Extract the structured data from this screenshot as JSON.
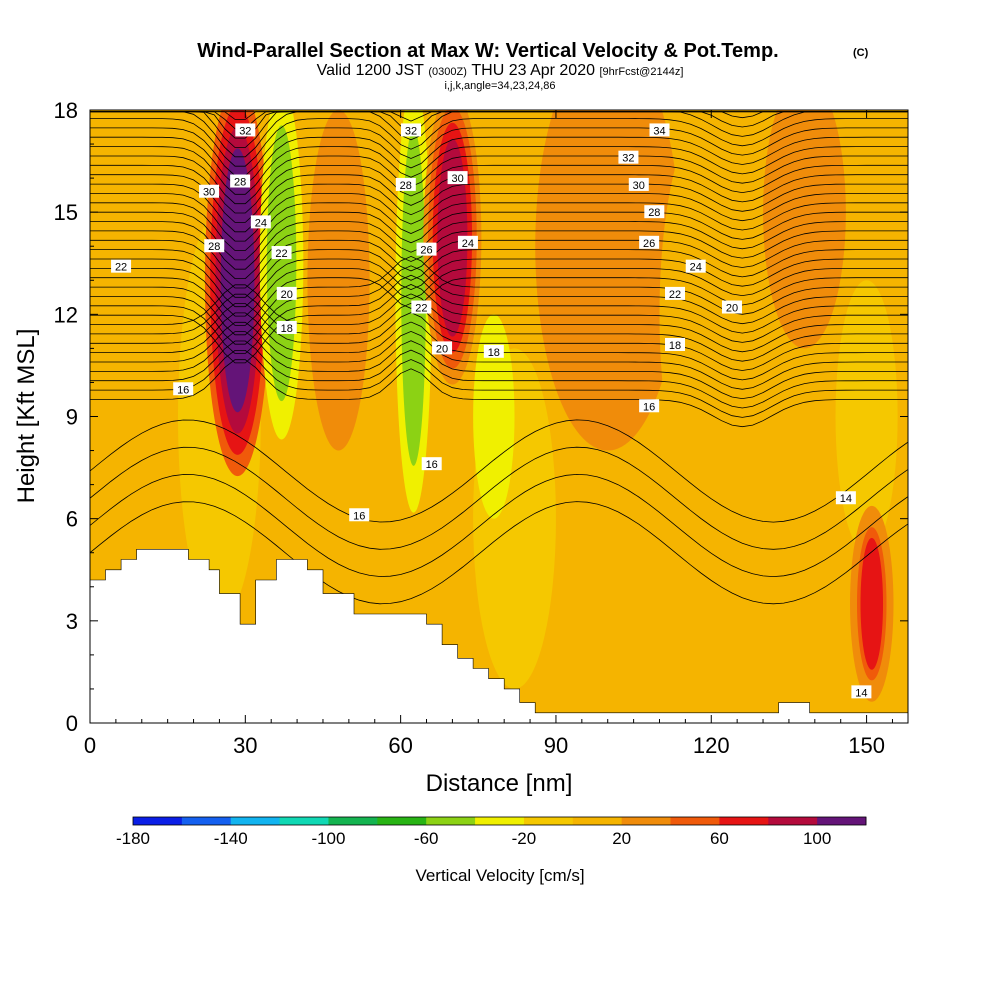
{
  "title": {
    "main": "Wind-Parallel Section at Max W: Vertical Velocity & Pot.Temp.",
    "main_suffix": "(C)",
    "valid_prefix": "Valid 1200 JST",
    "valid_z": "(0300Z)",
    "valid_date": "THU 23 Apr 2020",
    "forecast": "[9hrFcst@2144z]",
    "indices": "i,j,k,angle=34,23,24,86"
  },
  "chart_data": {
    "type": "heatmap",
    "xlabel": "Distance [nm]",
    "ylabel": "Height [Kft MSL]",
    "xlim": [
      0,
      158
    ],
    "ylim": [
      0,
      18
    ],
    "x_ticks": [
      0,
      30,
      60,
      90,
      120,
      150
    ],
    "y_ticks": [
      0,
      3,
      6,
      9,
      12,
      15,
      18
    ],
    "colorbar": {
      "label": "Vertical Velocity [cm/s]",
      "tick_labels": [
        -180,
        -140,
        -100,
        -60,
        -20,
        20,
        60,
        100
      ],
      "levels": [
        -180,
        -160,
        -140,
        -120,
        -100,
        -80,
        -60,
        -40,
        -20,
        0,
        20,
        40,
        60,
        80,
        100,
        120
      ],
      "colors": [
        "#0a1ee6",
        "#1460f0",
        "#12b4f0",
        "#10d8b4",
        "#14b450",
        "#28b414",
        "#8cd214",
        "#f0f000",
        "#f5c800",
        "#f5b400",
        "#f08c0a",
        "#f05a0a",
        "#e61414",
        "#b40a3c",
        "#641478"
      ]
    },
    "contours": {
      "field": "potential temperature",
      "labels": [
        14,
        16,
        18,
        20,
        22,
        24,
        26,
        28,
        30,
        32,
        34
      ]
    },
    "vertical_velocity_features": [
      {
        "x_range": [
          24,
          33
        ],
        "y_range": [
          8,
          18
        ],
        "value": 100
      },
      {
        "x_range": [
          34,
          40
        ],
        "y_range": [
          9,
          18
        ],
        "value": -60
      },
      {
        "x_range": [
          60,
          65
        ],
        "y_range": [
          7,
          18
        ],
        "value": -60
      },
      {
        "x_range": [
          66,
          74
        ],
        "y_range": [
          10.5,
          18
        ],
        "value": 80
      },
      {
        "x_range": [
          148,
          154
        ],
        "y_range": [
          1,
          6
        ],
        "value": 60
      }
    ]
  }
}
